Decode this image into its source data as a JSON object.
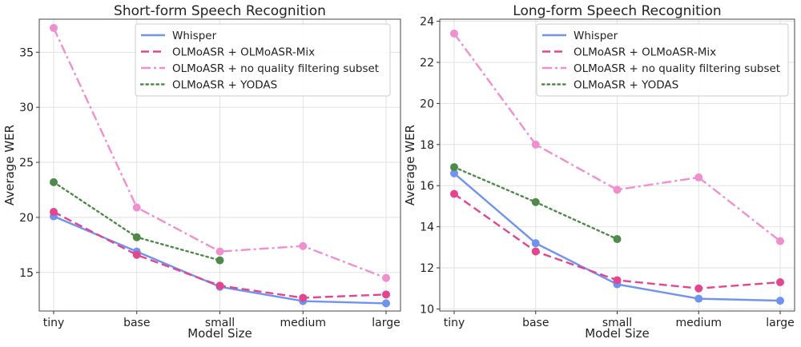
{
  "chart_data": [
    {
      "type": "line",
      "title": "Short-form Speech Recognition",
      "xlabel": "Model Size",
      "ylabel": "Average WER",
      "categories": [
        "tiny",
        "base",
        "small",
        "medium",
        "large"
      ],
      "ylim": [
        11.5,
        38
      ],
      "yticks": [
        15,
        20,
        25,
        30,
        35
      ],
      "grid": true,
      "legend_position": "top-right",
      "series": [
        {
          "name": "Whisper",
          "color": "#6f93ef",
          "dash": "solid",
          "values": [
            20.1,
            16.9,
            13.7,
            12.4,
            12.2
          ]
        },
        {
          "name": "OLMoASR + OLMoASR-Mix",
          "color": "#e4458f",
          "dash": "dashed",
          "values": [
            20.5,
            16.6,
            13.8,
            12.7,
            13.0
          ]
        },
        {
          "name": "OLMoASR + no quality filtering subset",
          "color": "#f08fd0",
          "dash": "dashdot",
          "values": [
            37.2,
            20.9,
            16.9,
            17.4,
            14.5
          ]
        },
        {
          "name": "OLMoASR + YODAS",
          "color": "#4f8a4a",
          "dash": "dotted",
          "values": [
            23.2,
            18.2,
            16.1,
            null,
            null
          ]
        }
      ]
    },
    {
      "type": "line",
      "title": "Long-form Speech Recognition",
      "xlabel": "Model Size",
      "ylabel": "Average WER",
      "categories": [
        "tiny",
        "base",
        "small",
        "medium",
        "large"
      ],
      "ylim": [
        9.9,
        24.1
      ],
      "yticks": [
        10,
        12,
        14,
        16,
        18,
        20,
        22,
        24
      ],
      "grid": true,
      "legend_position": "top-right",
      "series": [
        {
          "name": "Whisper",
          "color": "#6f93ef",
          "dash": "solid",
          "values": [
            16.6,
            13.2,
            11.2,
            10.5,
            10.4
          ]
        },
        {
          "name": "OLMoASR + OLMoASR-Mix",
          "color": "#e4458f",
          "dash": "dashed",
          "values": [
            15.6,
            12.8,
            11.4,
            11.0,
            11.3
          ]
        },
        {
          "name": "OLMoASR + no quality filtering subset",
          "color": "#f08fd0",
          "dash": "dashdot",
          "values": [
            23.4,
            18.0,
            15.8,
            16.4,
            13.3
          ]
        },
        {
          "name": "OLMoASR + YODAS",
          "color": "#4f8a4a",
          "dash": "dotted",
          "values": [
            16.9,
            15.2,
            13.4,
            null,
            null
          ]
        }
      ]
    }
  ]
}
